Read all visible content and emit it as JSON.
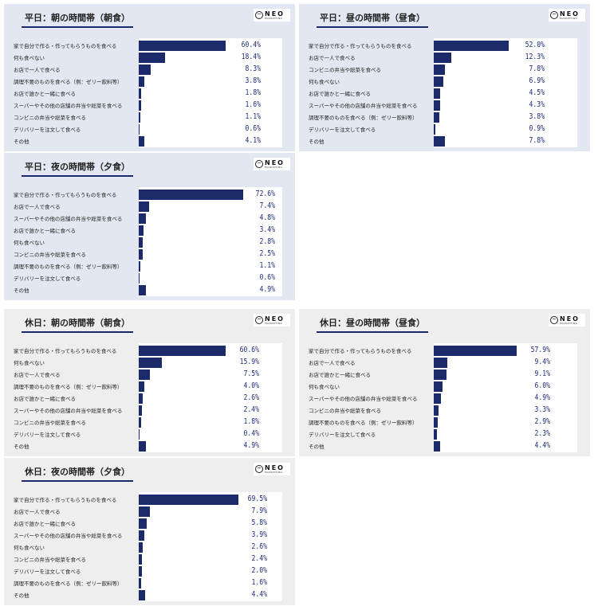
{
  "colors": {
    "bar": "#1b2a6b",
    "value_text": "#1f2d7a",
    "weekday_bg": "#e3e7f1",
    "holiday_bg": "#eeeeee"
  },
  "logo": {
    "icon": "neo-circle-logo",
    "text": "NEO",
    "sub": "MARKETING"
  },
  "chart_data": [
    {
      "type": "bar",
      "orientation": "horizontal",
      "title": "平日：朝の時間帯（朝食）",
      "unit": "%",
      "categories": [
        "家で自分で作る・作ってもらうものを食べる",
        "何も食べない",
        "お店で一人で食べる",
        "調理不要のものを食べる（例：ゼリー飲料等）",
        "お店で誰かと一緒に食べる",
        "スーパーやその他の店舗の弁当や総菜を食べる",
        "コンビニの弁当や総菜を食べる",
        "デリバリーを注文して食べる",
        "その他"
      ],
      "values": [
        60.4,
        18.4,
        8.3,
        3.8,
        1.8,
        1.6,
        1.1,
        0.6,
        4.1
      ],
      "labels": [
        "60.4%",
        "18.4%",
        "8.3%",
        "3.8%",
        "1.8%",
        "1.6%",
        "1.1%",
        "0.6%",
        "4.1%"
      ]
    },
    {
      "type": "bar",
      "orientation": "horizontal",
      "title": "平日：昼の時間帯（昼食）",
      "unit": "%",
      "categories": [
        "家で自分で作る・作ってもらうものを食べる",
        "お店で一人で食べる",
        "コンビニの弁当や総菜を食べる",
        "何も食べない",
        "お店で誰かと一緒に食べる",
        "スーパーやその他の店舗の弁当や総菜を食べる",
        "調理不要のものを食べる（例：ゼリー飲料等）",
        "デリバリーを注文して食べる",
        "その他"
      ],
      "values": [
        52.0,
        12.3,
        7.8,
        6.9,
        4.5,
        4.3,
        3.8,
        0.9,
        7.8
      ],
      "labels": [
        "52.0%",
        "12.3%",
        "7.8%",
        "6.9%",
        "4.5%",
        "4.3%",
        "3.8%",
        "0.9%",
        "7.8%"
      ]
    },
    {
      "type": "bar",
      "orientation": "horizontal",
      "title": "平日：夜の時間帯（夕食）",
      "unit": "%",
      "categories": [
        "家で自分で作る・作ってもらうものを食べる",
        "お店で一人で食べる",
        "スーパーやその他の店舗の弁当や総菜を食べる",
        "お店で誰かと一緒に食べる",
        "何も食べない",
        "コンビニの弁当や総菜を食べる",
        "調理不要のものを食べる（例：ゼリー飲料等）",
        "デリバリーを注文して食べる",
        "その他"
      ],
      "values": [
        72.6,
        7.4,
        4.8,
        3.4,
        2.8,
        2.5,
        1.1,
        0.6,
        4.9
      ],
      "labels": [
        "72.6%",
        "7.4%",
        "4.8%",
        "3.4%",
        "2.8%",
        "2.5%",
        "1.1%",
        "0.6%",
        "4.9%"
      ]
    },
    {
      "type": "bar",
      "orientation": "horizontal",
      "title": "休日：朝の時間帯（朝食）",
      "unit": "%",
      "categories": [
        "家で自分で作る・作ってもらうものを食べる",
        "何も食べない",
        "お店で一人で食べる",
        "調理不要のものを食べる（例：ゼリー飲料等）",
        "お店で誰かと一緒に食べる",
        "スーパーやその他の店舗の弁当や総菜を食べる",
        "コンビニの弁当や総菜を食べる",
        "デリバリーを注文して食べる",
        "その他"
      ],
      "values": [
        60.6,
        15.9,
        7.5,
        4.0,
        2.6,
        2.4,
        1.8,
        0.4,
        4.9
      ],
      "labels": [
        "60.6%",
        "15.9%",
        "7.5%",
        "4.0%",
        "2.6%",
        "2.4%",
        "1.8%",
        "0.4%",
        "4.9%"
      ]
    },
    {
      "type": "bar",
      "orientation": "horizontal",
      "title": "休日：昼の時間帯（昼食）",
      "unit": "%",
      "categories": [
        "家で自分で作る・作ってもらうものを食べる",
        "お店で一人で食べる",
        "お店で誰かと一緒に食べる",
        "何も食べない",
        "スーパーやその他の店舗の弁当や総菜を食べる",
        "コンビニの弁当や総菜を食べる",
        "調理不要のものを食べる（例：ゼリー飲料等）",
        "デリバリーを注文して食べる",
        "その他"
      ],
      "values": [
        57.9,
        9.4,
        9.1,
        6.0,
        4.9,
        3.3,
        2.9,
        2.3,
        4.4
      ],
      "labels": [
        "57.9%",
        "9.4%",
        "9.1%",
        "6.0%",
        "4.9%",
        "3.3%",
        "2.9%",
        "2.3%",
        "4.4%"
      ]
    },
    {
      "type": "bar",
      "orientation": "horizontal",
      "title": "休日：夜の時間帯（夕食）",
      "unit": "%",
      "categories": [
        "家で自分で作る・作ってもらうものを食べる",
        "お店で一人で食べる",
        "お店で誰かと一緒に食べる",
        "スーパーやその他の店舗の弁当や総菜を食べる",
        "何も食べない",
        "コンビニの弁当や総菜を食べる",
        "デリバリーを注文して食べる",
        "調理不要のものを食べる（例：ゼリー飲料等）",
        "その他"
      ],
      "values": [
        69.5,
        7.9,
        5.8,
        3.9,
        2.6,
        2.4,
        2.0,
        1.6,
        4.4
      ],
      "labels": [
        "69.5%",
        "7.9%",
        "5.8%",
        "3.9%",
        "2.6%",
        "2.4%",
        "2.0%",
        "1.6%",
        "4.4%"
      ]
    }
  ]
}
